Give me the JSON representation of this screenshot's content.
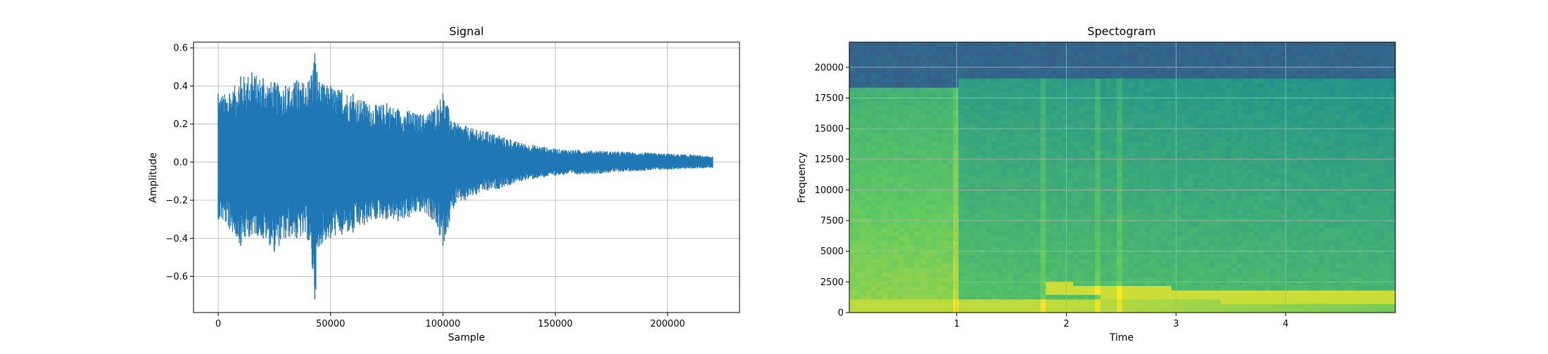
{
  "chart_data": [
    {
      "type": "line",
      "title": "Signal",
      "xlabel": "Sample",
      "ylabel": "Amplitude",
      "xlim": [
        -11000,
        232000
      ],
      "ylim": [
        -0.79,
        0.63
      ],
      "xticks": [
        0,
        50000,
        100000,
        150000,
        200000
      ],
      "xtick_labels": [
        "0",
        "50000",
        "100000",
        "150000",
        "200000"
      ],
      "yticks": [
        -0.6,
        -0.4,
        -0.2,
        0.0,
        0.2,
        0.4,
        0.6
      ],
      "ytick_labels": [
        "−0.6",
        "−0.4",
        "−0.2",
        "0.0",
        "0.2",
        "0.4",
        "0.6"
      ],
      "grid": true,
      "color": "#1f77b4",
      "series": [
        {
          "x": [
            0,
            5000,
            10000,
            15000,
            20000,
            25000,
            30000,
            35000,
            40000,
            43000,
            45000,
            50000,
            55000,
            60000,
            65000,
            70000,
            75000,
            80000,
            85000,
            90000,
            95000,
            100000,
            105000,
            110000,
            115000,
            120000,
            125000,
            130000,
            135000,
            140000,
            145000,
            150000,
            160000,
            170000,
            180000,
            190000,
            200000,
            210000,
            220000
          ],
          "upper": [
            0.36,
            0.36,
            0.45,
            0.47,
            0.44,
            0.42,
            0.4,
            0.43,
            0.42,
            0.57,
            0.42,
            0.4,
            0.38,
            0.36,
            0.32,
            0.3,
            0.31,
            0.28,
            0.27,
            0.25,
            0.27,
            0.36,
            0.21,
            0.19,
            0.17,
            0.16,
            0.14,
            0.12,
            0.1,
            0.09,
            0.08,
            0.07,
            0.065,
            0.06,
            0.055,
            0.05,
            0.045,
            0.04,
            0.03
          ],
          "lower": [
            -0.3,
            -0.35,
            -0.44,
            -0.38,
            -0.4,
            -0.47,
            -0.4,
            -0.4,
            -0.41,
            -0.72,
            -0.44,
            -0.4,
            -0.38,
            -0.37,
            -0.33,
            -0.3,
            -0.3,
            -0.31,
            -0.29,
            -0.26,
            -0.3,
            -0.44,
            -0.23,
            -0.2,
            -0.17,
            -0.15,
            -0.14,
            -0.12,
            -0.1,
            -0.09,
            -0.08,
            -0.07,
            -0.065,
            -0.06,
            -0.05,
            -0.045,
            -0.04,
            -0.035,
            -0.03
          ]
        }
      ]
    },
    {
      "type": "heatmap",
      "title": "Spectogram",
      "xlabel": "Time",
      "ylabel": "Frequency",
      "xlim": [
        0.02,
        5.0
      ],
      "ylim": [
        0,
        22050
      ],
      "xticks": [
        1,
        2,
        3,
        4
      ],
      "xtick_labels": [
        "1",
        "2",
        "3",
        "4"
      ],
      "yticks": [
        0,
        2500,
        5000,
        7500,
        10000,
        12500,
        15000,
        17500,
        20000
      ],
      "ytick_labels": [
        "0",
        "2500",
        "5000",
        "7500",
        "10000",
        "12500",
        "15000",
        "17500",
        "20000"
      ],
      "grid": true,
      "colormap": "viridis",
      "onset_times": [
        1.0,
        1.78,
        2.28,
        2.5
      ],
      "rolloff_hz_before_1s": 18500,
      "rolloff_hz_after_1s": 19000,
      "tonal_band": {
        "times": [
          1.8,
          2.5,
          3.0,
          4.0,
          5.0
        ],
        "freqs": [
          2000,
          1700,
          1500,
          1300,
          1200
        ]
      }
    }
  ]
}
